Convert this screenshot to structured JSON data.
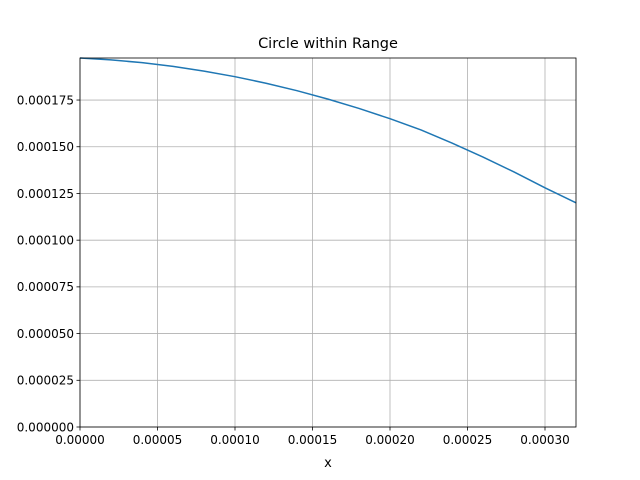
{
  "chart_data": {
    "type": "line",
    "title": "Circle within Range",
    "xlabel": "x",
    "ylabel": "",
    "xlim": [
      0,
      0.00032
    ],
    "ylim": [
      0,
      0.0001975
    ],
    "grid": true,
    "x_ticks": [
      0,
      5e-05,
      0.0001,
      0.00015,
      0.0002,
      0.00025,
      0.0003
    ],
    "x_tick_labels": [
      "0.00000",
      "0.00005",
      "0.00010",
      "0.00015",
      "0.00020",
      "0.00025",
      "0.00030"
    ],
    "y_ticks": [
      0,
      2.5e-05,
      5e-05,
      7.5e-05,
      0.0001,
      0.000125,
      0.00015,
      0.000175
    ],
    "y_tick_labels": [
      "0.000000",
      "0.000025",
      "0.000050",
      "0.000075",
      "0.000100",
      "0.000125",
      "0.000150",
      "0.000175"
    ],
    "colors": {
      "line": "#1f77b4",
      "grid": "#b0b0b0",
      "axes": "#000000"
    },
    "series": [
      {
        "x": [
          0,
          2e-05,
          4e-05,
          6e-05,
          8e-05,
          0.0001,
          0.00012,
          0.00014,
          0.00016,
          0.00018,
          0.0002,
          0.00022,
          0.00024,
          0.00026,
          0.00028,
          0.0003,
          0.00032
        ],
        "values": [
          0.0001975,
          0.0001965,
          0.000195,
          0.000193,
          0.0001905,
          0.0001875,
          0.000184,
          0.00018,
          0.0001755,
          0.0001705,
          0.000165,
          0.000159,
          0.000152,
          0.0001445,
          0.0001365,
          0.000128,
          0.00012
        ]
      }
    ]
  }
}
